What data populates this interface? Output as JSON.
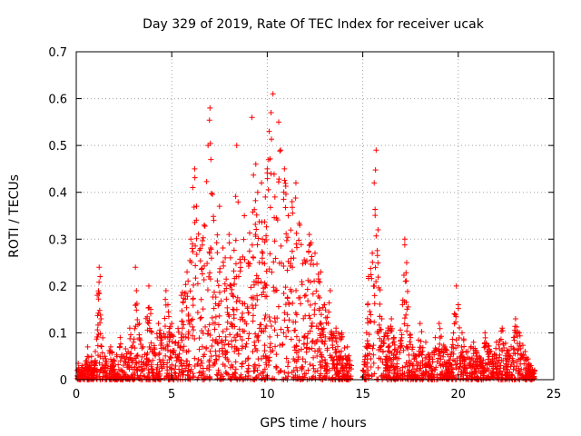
{
  "chart_data": {
    "type": "scatter",
    "title": "Day 329 of 2019, Rate Of TEC Index for receiver ucak",
    "xlabel": "GPS time / hours",
    "ylabel": "ROTI / TECUs",
    "xlim": [
      0,
      25
    ],
    "ylim": [
      0,
      0.7
    ],
    "xticks": [
      0,
      5,
      10,
      15,
      20,
      25
    ],
    "yticks": [
      0,
      0.1,
      0.2,
      0.3,
      0.4,
      0.5,
      0.6,
      0.7
    ],
    "grid": true,
    "marker": "+",
    "series": [
      {
        "name": "ROTI",
        "color": "#ff0000",
        "points": [
          [
            0.05,
            0.02
          ],
          [
            0.1,
            0.035
          ],
          [
            0.2,
            0.01
          ],
          [
            0.3,
            0.03
          ],
          [
            0.4,
            0.02
          ],
          [
            0.5,
            0.04
          ],
          [
            0.6,
            0.07
          ],
          [
            0.7,
            0.03
          ],
          [
            0.8,
            0.05
          ],
          [
            0.9,
            0.02
          ],
          [
            1.0,
            0.06
          ],
          [
            1.1,
            0.18
          ],
          [
            1.2,
            0.24
          ],
          [
            1.25,
            0.22
          ],
          [
            1.3,
            0.13
          ],
          [
            1.5,
            0.05
          ],
          [
            1.8,
            0.07
          ],
          [
            2.0,
            0.04
          ],
          [
            2.3,
            0.09
          ],
          [
            2.5,
            0.05
          ],
          [
            2.8,
            0.11
          ],
          [
            3.0,
            0.08
          ],
          [
            3.1,
            0.24
          ],
          [
            3.15,
            0.19
          ],
          [
            3.3,
            0.12
          ],
          [
            3.5,
            0.07
          ],
          [
            3.8,
            0.2
          ],
          [
            3.9,
            0.15
          ],
          [
            4.0,
            0.06
          ],
          [
            4.3,
            0.12
          ],
          [
            4.5,
            0.09
          ],
          [
            4.7,
            0.19
          ],
          [
            4.8,
            0.16
          ],
          [
            5.0,
            0.12
          ],
          [
            5.2,
            0.08
          ],
          [
            5.5,
            0.18
          ],
          [
            5.8,
            0.23
          ],
          [
            6.0,
            0.3
          ],
          [
            6.1,
            0.41
          ],
          [
            6.2,
            0.45
          ],
          [
            6.3,
            0.37
          ],
          [
            6.5,
            0.28
          ],
          [
            6.7,
            0.33
          ],
          [
            6.9,
            0.5
          ],
          [
            7.0,
            0.58
          ],
          [
            7.05,
            0.47
          ],
          [
            7.2,
            0.34
          ],
          [
            7.5,
            0.37
          ],
          [
            7.8,
            0.26
          ],
          [
            8.0,
            0.31
          ],
          [
            8.2,
            0.18
          ],
          [
            8.4,
            0.5
          ],
          [
            8.6,
            0.25
          ],
          [
            8.8,
            0.35
          ],
          [
            9.0,
            0.25
          ],
          [
            9.2,
            0.56
          ],
          [
            9.4,
            0.46
          ],
          [
            9.5,
            0.4
          ],
          [
            9.7,
            0.42
          ],
          [
            9.9,
            0.39
          ],
          [
            10.0,
            0.45
          ],
          [
            10.1,
            0.53
          ],
          [
            10.2,
            0.57
          ],
          [
            10.3,
            0.61
          ],
          [
            10.4,
            0.39
          ],
          [
            10.6,
            0.55
          ],
          [
            10.7,
            0.49
          ],
          [
            10.9,
            0.45
          ],
          [
            11.1,
            0.35
          ],
          [
            11.3,
            0.38
          ],
          [
            11.5,
            0.42
          ],
          [
            11.7,
            0.33
          ],
          [
            12.0,
            0.25
          ],
          [
            12.2,
            0.31
          ],
          [
            12.5,
            0.27
          ],
          [
            12.8,
            0.23
          ],
          [
            13.0,
            0.16
          ],
          [
            13.3,
            0.19
          ],
          [
            13.6,
            0.11
          ],
          [
            13.9,
            0.1
          ],
          [
            14.2,
            0.07
          ],
          [
            14.4,
            0.03
          ],
          [
            15.0,
            0.02
          ],
          [
            15.2,
            0.1
          ],
          [
            15.3,
            0.22
          ],
          [
            15.5,
            0.27
          ],
          [
            15.6,
            0.42
          ],
          [
            15.7,
            0.49
          ],
          [
            15.8,
            0.32
          ],
          [
            16.0,
            0.13
          ],
          [
            16.2,
            0.1
          ],
          [
            16.5,
            0.13
          ],
          [
            16.8,
            0.06
          ],
          [
            17.1,
            0.17
          ],
          [
            17.2,
            0.3
          ],
          [
            17.3,
            0.25
          ],
          [
            17.5,
            0.09
          ],
          [
            17.8,
            0.05
          ],
          [
            18.0,
            0.12
          ],
          [
            18.3,
            0.08
          ],
          [
            18.5,
            0.05
          ],
          [
            18.8,
            0.09
          ],
          [
            19.0,
            0.12
          ],
          [
            19.3,
            0.07
          ],
          [
            19.6,
            0.05
          ],
          [
            19.8,
            0.14
          ],
          [
            19.9,
            0.2
          ],
          [
            20.0,
            0.16
          ],
          [
            20.2,
            0.1
          ],
          [
            20.5,
            0.06
          ],
          [
            20.8,
            0.08
          ],
          [
            21.1,
            0.05
          ],
          [
            21.4,
            0.1
          ],
          [
            21.7,
            0.06
          ],
          [
            22.0,
            0.08
          ],
          [
            22.3,
            0.11
          ],
          [
            22.6,
            0.06
          ],
          [
            22.9,
            0.09
          ],
          [
            23.0,
            0.13
          ],
          [
            23.2,
            0.1
          ],
          [
            23.5,
            0.06
          ],
          [
            23.8,
            0.03
          ],
          [
            24.0,
            0.02
          ]
        ]
      }
    ]
  }
}
